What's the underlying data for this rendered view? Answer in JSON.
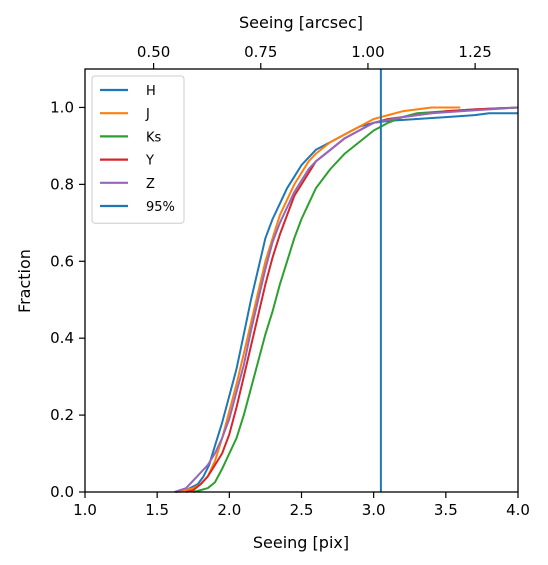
{
  "chart_data": {
    "type": "line",
    "xlabel": "Seeing [pix]",
    "ylabel": "Fraction",
    "top_xlabel": "Seeing [arcsec]",
    "xlim": [
      1.0,
      4.0
    ],
    "ylim": [
      0.0,
      1.1
    ],
    "x_ticks": [
      "1.0",
      "1.5",
      "2.0",
      "2.5",
      "3.0",
      "3.5",
      "4.0"
    ],
    "y_ticks": [
      "0.0",
      "0.2",
      "0.4",
      "0.6",
      "0.8",
      "1.0"
    ],
    "top_ticks": [
      {
        "label": "0.50",
        "value": 0.5
      },
      {
        "label": "0.75",
        "value": 0.75
      },
      {
        "label": "1.00",
        "value": 1.0
      },
      {
        "label": "1.25",
        "value": 1.25
      }
    ],
    "top_xlim": [
      0.34,
      1.35
    ],
    "grid": false,
    "legend_position": "top-left",
    "series": [
      {
        "name": "H",
        "color": "#1f77b4",
        "x": [
          1.63,
          1.7,
          1.78,
          1.82,
          1.86,
          1.9,
          1.95,
          2.0,
          2.05,
          2.1,
          2.15,
          2.2,
          2.25,
          2.3,
          2.35,
          2.4,
          2.45,
          2.5,
          2.55,
          2.6,
          2.7,
          2.8,
          2.9,
          3.0,
          3.1,
          3.3,
          3.5,
          3.7,
          3.8,
          4.0
        ],
        "y": [
          0.0,
          0.005,
          0.02,
          0.04,
          0.07,
          0.12,
          0.18,
          0.25,
          0.32,
          0.41,
          0.5,
          0.58,
          0.66,
          0.71,
          0.75,
          0.79,
          0.82,
          0.85,
          0.87,
          0.89,
          0.91,
          0.93,
          0.95,
          0.96,
          0.965,
          0.97,
          0.975,
          0.98,
          0.985,
          0.985
        ]
      },
      {
        "name": "J",
        "color": "#ff7f0e",
        "x": [
          1.65,
          1.7,
          1.75,
          1.8,
          1.85,
          1.9,
          1.95,
          2.0,
          2.05,
          2.1,
          2.15,
          2.2,
          2.25,
          2.3,
          2.35,
          2.4,
          2.45,
          2.5,
          2.55,
          2.6,
          2.7,
          2.8,
          2.9,
          3.0,
          3.1,
          3.2,
          3.3,
          3.4,
          3.5,
          3.6
        ],
        "y": [
          0.0,
          0.005,
          0.01,
          0.02,
          0.04,
          0.08,
          0.14,
          0.21,
          0.28,
          0.36,
          0.44,
          0.52,
          0.6,
          0.66,
          0.72,
          0.76,
          0.8,
          0.83,
          0.86,
          0.88,
          0.91,
          0.93,
          0.95,
          0.97,
          0.98,
          0.99,
          0.995,
          1.0,
          1.0,
          1.0
        ]
      },
      {
        "name": "Ks",
        "color": "#2ca02c",
        "x": [
          1.75,
          1.8,
          1.85,
          1.9,
          1.95,
          2.0,
          2.05,
          2.1,
          2.15,
          2.2,
          2.25,
          2.3,
          2.35,
          2.4,
          2.45,
          2.5,
          2.55,
          2.6,
          2.7,
          2.8,
          2.9,
          3.0,
          3.1,
          3.2,
          3.3,
          3.5,
          3.7,
          4.0
        ],
        "y": [
          0.0,
          0.005,
          0.01,
          0.025,
          0.06,
          0.1,
          0.14,
          0.2,
          0.27,
          0.34,
          0.41,
          0.47,
          0.54,
          0.6,
          0.66,
          0.71,
          0.75,
          0.79,
          0.84,
          0.88,
          0.91,
          0.94,
          0.96,
          0.975,
          0.985,
          0.99,
          0.995,
          1.0
        ]
      },
      {
        "name": "Y",
        "color": "#d62728",
        "x": [
          1.7,
          1.75,
          1.8,
          1.85,
          1.9,
          1.95,
          2.0,
          2.05,
          2.1,
          2.15,
          2.2,
          2.25,
          2.3,
          2.35,
          2.4,
          2.45,
          2.5,
          2.55,
          2.6,
          2.7,
          2.8,
          2.9,
          3.0,
          3.1,
          3.3,
          3.5,
          3.7,
          4.0
        ],
        "y": [
          0.0,
          0.005,
          0.02,
          0.04,
          0.07,
          0.1,
          0.15,
          0.22,
          0.3,
          0.38,
          0.46,
          0.54,
          0.61,
          0.67,
          0.72,
          0.77,
          0.8,
          0.83,
          0.86,
          0.89,
          0.92,
          0.94,
          0.96,
          0.97,
          0.98,
          0.99,
          0.995,
          1.0
        ]
      },
      {
        "name": "Z",
        "color": "#9467bd",
        "x": [
          1.62,
          1.7,
          1.75,
          1.8,
          1.85,
          1.9,
          1.95,
          2.0,
          2.05,
          2.1,
          2.15,
          2.2,
          2.25,
          2.3,
          2.35,
          2.4,
          2.45,
          2.5,
          2.55,
          2.6,
          2.7,
          2.8,
          2.9,
          3.0,
          3.2,
          3.4,
          3.6,
          3.8,
          4.0
        ],
        "y": [
          0.0,
          0.01,
          0.03,
          0.05,
          0.07,
          0.1,
          0.14,
          0.19,
          0.26,
          0.33,
          0.42,
          0.5,
          0.58,
          0.65,
          0.7,
          0.74,
          0.78,
          0.81,
          0.84,
          0.86,
          0.89,
          0.92,
          0.94,
          0.96,
          0.975,
          0.985,
          0.99,
          0.995,
          1.0
        ]
      }
    ],
    "vline": {
      "name": "95%",
      "color": "#1f77b4",
      "x": 3.05
    }
  }
}
